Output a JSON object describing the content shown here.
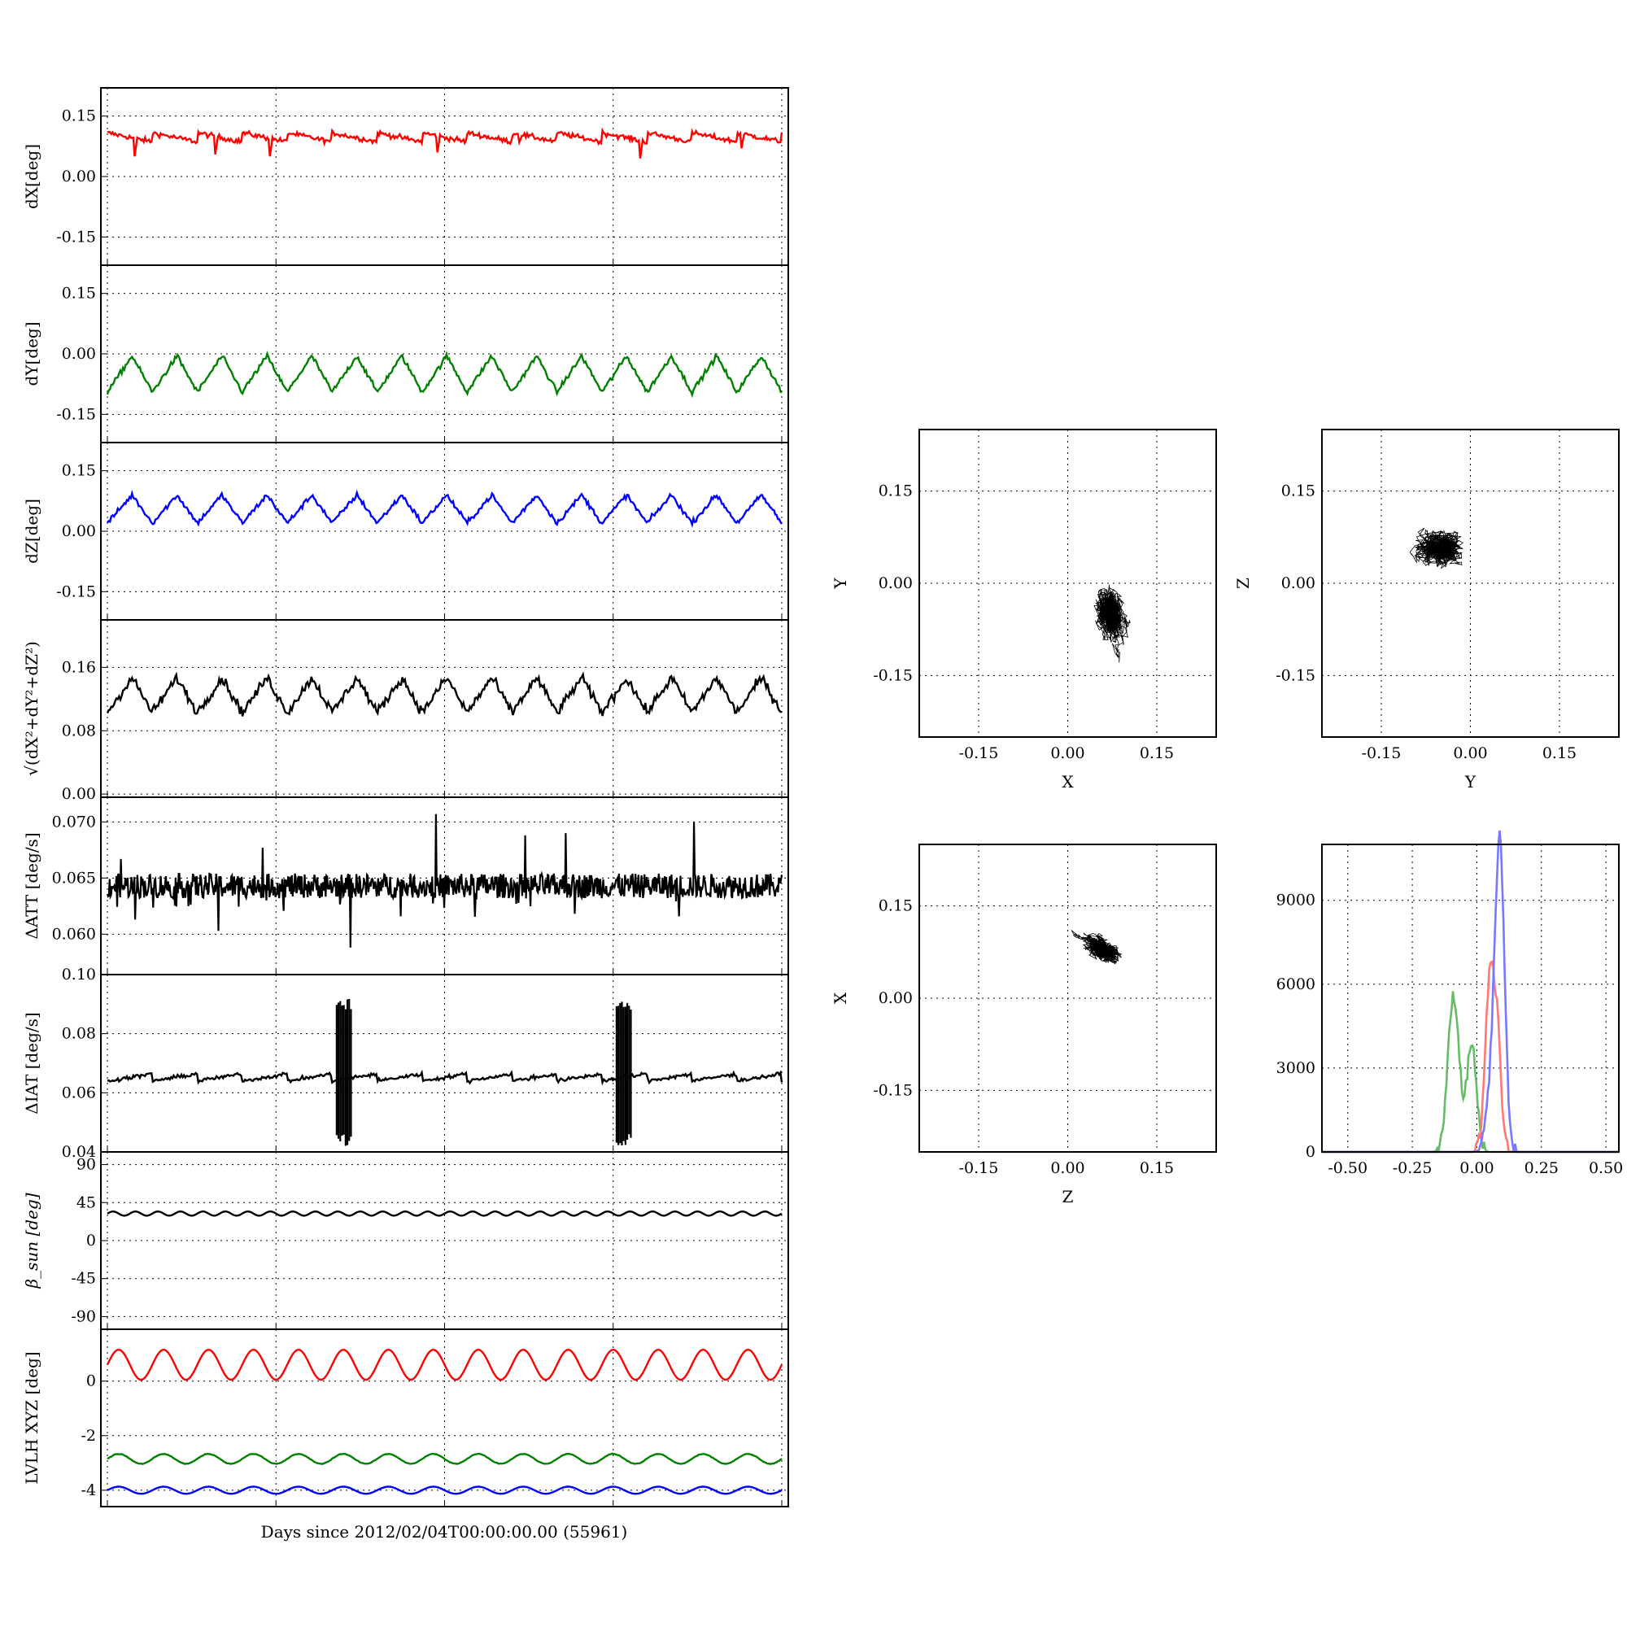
{
  "figure": {
    "xlabel_main": "Days since 2012/02/04T00:00:00.00 (55961)"
  },
  "colors": {
    "red": "#ff0000",
    "green": "#008000",
    "blue": "#0000ff",
    "black": "#000000",
    "hist_red": "#ff7777",
    "hist_green": "#66bb66",
    "hist_blue": "#7777ff"
  },
  "chart_data": [
    {
      "id": "dx",
      "type": "line",
      "ylabel": "dX[deg]",
      "ylim": [
        -0.22,
        0.22
      ],
      "yticks": [
        "0.15",
        "0.00",
        "-0.15"
      ],
      "ytick_values": [
        0.15,
        0.0,
        -0.15
      ],
      "color": "red",
      "series": [
        {
          "kind": "sawtooth",
          "base": 0.095,
          "amp": 0.025,
          "cycles": 15,
          "noise": 0.006,
          "dips": [
            [
              0.04,
              0.05
            ],
            [
              0.16,
              0.055
            ],
            [
              0.24,
              0.05
            ],
            [
              0.49,
              0.06
            ],
            [
              0.61,
              0.085
            ],
            [
              0.79,
              0.045
            ],
            [
              0.94,
              0.07
            ]
          ]
        }
      ]
    },
    {
      "id": "dy",
      "type": "line",
      "ylabel": "dY[deg]",
      "ylim": [
        -0.22,
        0.22
      ],
      "yticks": [
        "0.15",
        "0.00",
        "-0.15"
      ],
      "ytick_values": [
        0.15,
        0.0,
        -0.15
      ],
      "color": "green",
      "series": [
        {
          "kind": "tri",
          "base": -0.05,
          "amp": 0.045,
          "cycles": 15,
          "noise": 0.006
        }
      ]
    },
    {
      "id": "dz",
      "type": "line",
      "ylabel": "dZ[deg]",
      "ylim": [
        -0.22,
        0.22
      ],
      "yticks": [
        "0.15",
        "0.00",
        "-0.15"
      ],
      "ytick_values": [
        0.15,
        0.0,
        -0.15
      ],
      "color": "blue",
      "series": [
        {
          "kind": "tri",
          "base": 0.055,
          "amp": 0.035,
          "cycles": 15,
          "noise": 0.006
        }
      ]
    },
    {
      "id": "dr",
      "type": "line",
      "ylabel": "√(dX²+dY²+dZ²)",
      "ylim": [
        -0.004,
        0.22
      ],
      "yticks": [
        "0.16",
        "0.08",
        "0.00"
      ],
      "ytick_values": [
        0.16,
        0.08,
        0.0
      ],
      "color": "black",
      "series": [
        {
          "kind": "tri",
          "base": 0.125,
          "amp": 0.022,
          "cycles": 15,
          "noise": 0.006
        }
      ]
    },
    {
      "id": "datt",
      "type": "line",
      "ylabel": "ΔATT [deg/s]",
      "ylim": [
        0.0564,
        0.0722
      ],
      "yticks": [
        "0.070",
        "0.065",
        "0.060"
      ],
      "ytick_values": [
        0.07,
        0.065,
        0.06
      ],
      "color": "black",
      "series": [
        {
          "kind": "noise",
          "base": 0.0643,
          "amp": 0.0011,
          "spikes": [
            [
              0.02,
              0.0667
            ],
            [
              0.12,
              0.0625
            ],
            [
              0.165,
              0.0603
            ],
            [
              0.23,
              0.0677
            ],
            [
              0.36,
              0.0588
            ],
            [
              0.487,
              0.0707
            ],
            [
              0.62,
              0.0688
            ],
            [
              0.68,
              0.069
            ],
            [
              0.87,
              0.07
            ]
          ]
        }
      ]
    },
    {
      "id": "diat",
      "type": "line",
      "ylabel": "ΔIAT [deg/s]",
      "ylim": [
        0.04,
        0.1
      ],
      "yticks": [
        "0.10",
        "0.08",
        "0.06",
        "0.04"
      ],
      "ytick_values": [
        0.1,
        0.08,
        0.06,
        0.04
      ],
      "color": "black",
      "series": [
        {
          "kind": "ramp",
          "base": 0.0652,
          "amp": 0.0012,
          "cycles": 15,
          "noise": 0.0006,
          "bursts": [
            [
              0.34,
              0.042,
              0.092
            ],
            [
              0.755,
              0.042,
              0.092
            ]
          ]
        }
      ]
    },
    {
      "id": "beta",
      "type": "line",
      "ylabel": "β_sun [deg]",
      "ylim": [
        -105,
        105
      ],
      "yticks": [
        "90",
        "45",
        "0",
        "-45",
        "-90"
      ],
      "ytick_values": [
        90,
        45,
        0,
        -45,
        -90
      ],
      "color": "black",
      "series": [
        {
          "kind": "sine",
          "base": 32,
          "amp": 2.5,
          "cycles": 30,
          "noise": 0
        }
      ]
    },
    {
      "id": "lvlh",
      "type": "line",
      "ylabel": "LVLH XYZ [deg]",
      "ylim": [
        -4.6,
        1.9
      ],
      "yticks": [
        "0",
        "-2",
        "-4"
      ],
      "ytick_values": [
        0,
        -2,
        -4
      ],
      "series": [
        {
          "color": "red",
          "kind": "sine",
          "base": 0.6,
          "amp": 0.55,
          "cycles": 15,
          "noise": 0
        },
        {
          "color": "green",
          "kind": "sine",
          "base": -2.85,
          "amp": 0.18,
          "cycles": 15,
          "noise": 0.01
        },
        {
          "color": "blue",
          "kind": "sine",
          "base": -4.0,
          "amp": 0.13,
          "cycles": 15,
          "noise": 0
        }
      ]
    },
    {
      "id": "xy",
      "type": "scatter",
      "xlabel": "X",
      "ylabel": "Y",
      "xlim": [
        -0.25,
        0.25
      ],
      "ylim": [
        -0.25,
        0.25
      ],
      "ticks": [
        "-0.15",
        "0.00",
        "0.15"
      ],
      "tick_values": [
        -0.15,
        0.0,
        0.15
      ],
      "center": [
        0.075,
        -0.05
      ],
      "spread": [
        0.022,
        0.045
      ],
      "tilt": 0.25
    },
    {
      "id": "yz",
      "type": "scatter",
      "xlabel": "Y",
      "ylabel": "Z",
      "xlim": [
        -0.25,
        0.25
      ],
      "ylim": [
        -0.25,
        0.25
      ],
      "ticks": [
        "-0.15",
        "0.00",
        "0.15"
      ],
      "tick_values": [
        -0.15,
        0.0,
        0.15
      ],
      "center": [
        -0.05,
        0.06
      ],
      "spread": [
        0.035,
        0.028
      ],
      "tilt": 0.0
    },
    {
      "id": "zx",
      "type": "scatter",
      "xlabel": "Z",
      "ylabel": "X",
      "xlim": [
        -0.25,
        0.25
      ],
      "ylim": [
        -0.25,
        0.25
      ],
      "ticks": [
        "-0.15",
        "0.00",
        "0.15"
      ],
      "tick_values": [
        -0.15,
        0.0,
        0.15
      ],
      "center": [
        0.06,
        0.08
      ],
      "spread": [
        0.035,
        0.015
      ],
      "tilt": -0.55
    },
    {
      "id": "hist",
      "type": "line",
      "xlim": [
        -0.6,
        0.55
      ],
      "ylim": [
        0,
        11000
      ],
      "xticks": [
        "-0.50",
        "-0.25",
        "0.00",
        "0.25",
        "0.50"
      ],
      "xtick_values": [
        -0.5,
        -0.25,
        0,
        0.25,
        0.5
      ],
      "yticks": [
        "9000",
        "6000",
        "3000",
        "0"
      ],
      "ytick_values": [
        9000,
        6000,
        3000,
        0
      ],
      "series": [
        {
          "color": "hist_green",
          "peaks": [
            [
              -0.09,
              5600,
              0.022
            ],
            [
              -0.02,
              3900,
              0.018
            ]
          ]
        },
        {
          "color": "hist_red",
          "peaks": [
            [
              0.05,
              6000,
              0.018
            ],
            [
              0.08,
              3500,
              0.015
            ]
          ]
        },
        {
          "color": "hist_blue",
          "peaks": [
            [
              0.09,
              10400,
              0.018
            ],
            [
              0.06,
              2500,
              0.02
            ]
          ]
        }
      ]
    }
  ]
}
